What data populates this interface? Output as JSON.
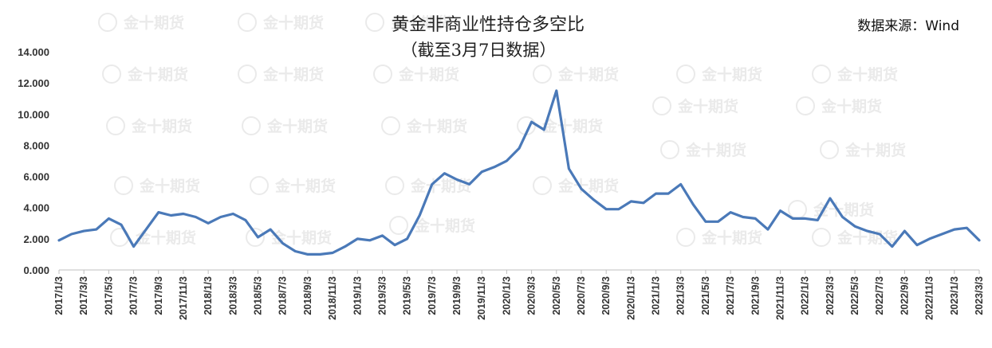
{
  "watermark_text": "金十期货",
  "chart_data": {
    "type": "line",
    "title": "黄金非商业性持仓多空比",
    "subtitle": "（截至3月7日数据）",
    "source": "数据来源：Wind",
    "ylim": [
      0,
      14
    ],
    "yticks": [
      "0.000",
      "2.000",
      "4.000",
      "6.000",
      "8.000",
      "10.000",
      "12.000",
      "14.000"
    ],
    "x_tick_labels": [
      "2017/1/3",
      "2017/3/3",
      "2017/5/3",
      "2017/7/3",
      "2017/9/3",
      "2017/11/3",
      "2018/1/3",
      "2018/3/3",
      "2018/5/3",
      "2018/7/3",
      "2018/9/3",
      "2018/11/3",
      "2019/1/3",
      "2019/3/3",
      "2019/5/3",
      "2019/7/3",
      "2019/9/3",
      "2019/11/3",
      "2020/1/3",
      "2020/3/3",
      "2020/5/3",
      "2020/7/3",
      "2020/9/3",
      "2020/11/3",
      "2021/1/3",
      "2021/3/3",
      "2021/5/3",
      "2021/7/3",
      "2021/9/3",
      "2021/11/3",
      "2022/1/3",
      "2022/3/3",
      "2022/5/3",
      "2022/7/3",
      "2022/9/3",
      "2022/11/3",
      "2023/1/3",
      "2023/3/3"
    ],
    "line_color": "#4a79b8",
    "series": [
      {
        "x": [
          "2017/1/3",
          "2017/2/3",
          "2017/3/3",
          "2017/4/3",
          "2017/5/3",
          "2017/6/3",
          "2017/7/3",
          "2017/8/3",
          "2017/9/3",
          "2017/10/3",
          "2017/11/3",
          "2017/12/3",
          "2018/1/3",
          "2018/2/3",
          "2018/3/3",
          "2018/4/3",
          "2018/5/3",
          "2018/6/3",
          "2018/7/3",
          "2018/8/3",
          "2018/9/3",
          "2018/10/3",
          "2018/11/3",
          "2018/12/3",
          "2019/1/3",
          "2019/2/3",
          "2019/3/3",
          "2019/4/3",
          "2019/5/3",
          "2019/6/3",
          "2019/7/3",
          "2019/8/3",
          "2019/9/3",
          "2019/10/3",
          "2019/11/3",
          "2019/12/3",
          "2020/1/3",
          "2020/2/3",
          "2020/3/3",
          "2020/4/3",
          "2020/5/3",
          "2020/6/3",
          "2020/7/3",
          "2020/8/3",
          "2020/9/3",
          "2020/10/3",
          "2020/11/3",
          "2020/12/3",
          "2021/1/3",
          "2021/2/3",
          "2021/3/3",
          "2021/4/3",
          "2021/5/3",
          "2021/6/3",
          "2021/7/3",
          "2021/8/3",
          "2021/9/3",
          "2021/10/3",
          "2021/11/3",
          "2021/12/3",
          "2022/1/3",
          "2022/2/3",
          "2022/3/3",
          "2022/4/3",
          "2022/5/3",
          "2022/6/3",
          "2022/7/3",
          "2022/8/3",
          "2022/9/3",
          "2022/10/3",
          "2022/11/3",
          "2022/12/3",
          "2023/1/3",
          "2023/2/3",
          "2023/3/3"
        ],
        "values": [
          1.9,
          2.3,
          2.5,
          2.6,
          3.3,
          2.9,
          1.5,
          2.6,
          3.7,
          3.5,
          3.6,
          3.4,
          3.0,
          3.4,
          3.6,
          3.2,
          2.1,
          2.6,
          1.7,
          1.2,
          1.0,
          1.0,
          1.1,
          1.5,
          2.0,
          1.9,
          2.2,
          1.6,
          2.0,
          3.5,
          5.5,
          6.2,
          5.8,
          5.5,
          6.3,
          6.6,
          7.0,
          7.8,
          9.5,
          9.0,
          11.5,
          6.5,
          5.2,
          4.5,
          3.9,
          3.9,
          4.4,
          4.3,
          4.9,
          4.9,
          5.5,
          4.2,
          3.1,
          3.1,
          3.7,
          3.4,
          3.3,
          2.6,
          3.8,
          3.3,
          3.3,
          3.2,
          4.6,
          3.4,
          2.8,
          2.5,
          2.3,
          1.5,
          2.5,
          1.6,
          2.0,
          2.3,
          2.6,
          2.7,
          1.9
        ]
      }
    ],
    "grid": false,
    "legend": "none"
  }
}
